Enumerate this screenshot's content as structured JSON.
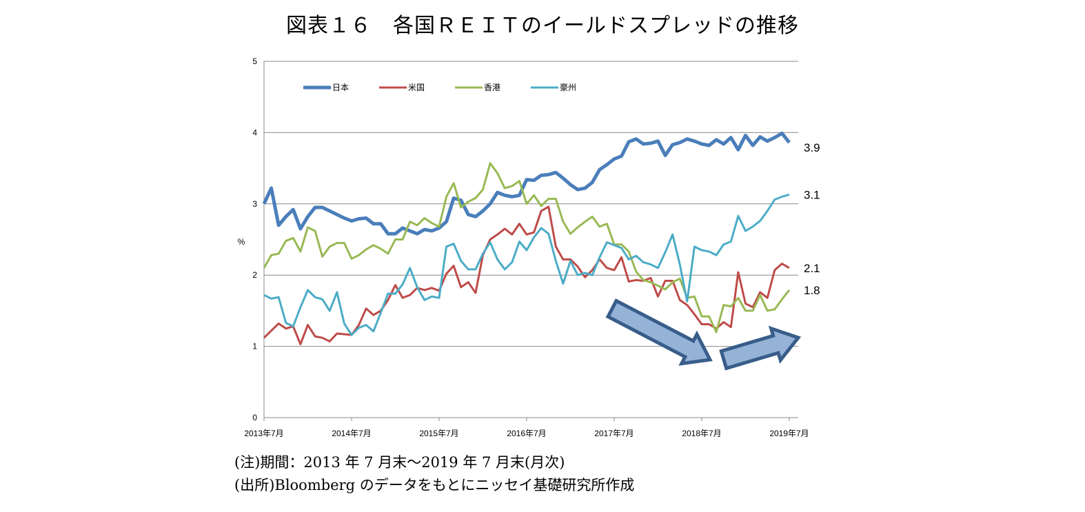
{
  "chart_data": {
    "type": "line",
    "title": "図表１６　各国ＲＥＩＴのイールドスプレッドの推移",
    "ylabel": "%",
    "xlabel": "",
    "ylim": [
      0,
      5
    ],
    "yticks": [
      0,
      1,
      2,
      3,
      4,
      5
    ],
    "start": "2013-07",
    "frequency": "monthly",
    "xticks": [
      "2013年7月",
      "2014年7月",
      "2015年7月",
      "2016年7月",
      "2017年7月",
      "2018年7月",
      "2019年7月"
    ],
    "grid": "horizontal",
    "legend_position": "top-left",
    "series": [
      {
        "name": "日本",
        "color": "#4a7ebb",
        "end_label": "3.9",
        "values": [
          3.0,
          3.22,
          2.7,
          2.82,
          2.92,
          2.65,
          2.82,
          2.95,
          2.95,
          2.9,
          2.85,
          2.8,
          2.76,
          2.79,
          2.8,
          2.72,
          2.72,
          2.58,
          2.58,
          2.66,
          2.62,
          2.58,
          2.64,
          2.62,
          2.66,
          2.75,
          3.08,
          3.05,
          2.85,
          2.82,
          2.9,
          3.0,
          3.16,
          3.12,
          3.1,
          3.12,
          3.34,
          3.33,
          3.4,
          3.41,
          3.44,
          3.36,
          3.27,
          3.2,
          3.22,
          3.3,
          3.48,
          3.55,
          3.63,
          3.67,
          3.87,
          3.91,
          3.84,
          3.85,
          3.88,
          3.68,
          3.83,
          3.86,
          3.91,
          3.88,
          3.84,
          3.82,
          3.9,
          3.84,
          3.93,
          3.76,
          3.96,
          3.82,
          3.94,
          3.88,
          3.93,
          3.99,
          3.86
        ]
      },
      {
        "name": "米国",
        "color": "#be4b48",
        "end_label": "2.1",
        "values": [
          1.12,
          1.22,
          1.32,
          1.25,
          1.28,
          1.03,
          1.3,
          1.14,
          1.12,
          1.07,
          1.18,
          1.17,
          1.16,
          1.3,
          1.53,
          1.44,
          1.5,
          1.65,
          1.86,
          1.68,
          1.72,
          1.82,
          1.79,
          1.82,
          1.78,
          2.02,
          2.13,
          1.83,
          1.9,
          1.75,
          2.28,
          2.5,
          2.57,
          2.65,
          2.57,
          2.72,
          2.57,
          2.6,
          2.9,
          2.96,
          2.4,
          2.22,
          2.22,
          2.12,
          1.97,
          2.07,
          2.22,
          2.1,
          2.07,
          2.25,
          1.91,
          1.93,
          1.92,
          1.96,
          1.7,
          1.92,
          1.92,
          1.65,
          1.58,
          1.45,
          1.31,
          1.31,
          1.25,
          1.34,
          1.27,
          2.04,
          1.6,
          1.55,
          1.76,
          1.68,
          2.07,
          2.16,
          2.1
        ]
      },
      {
        "name": "香港",
        "color": "#98b954",
        "end_label": "1.8",
        "values": [
          2.1,
          2.28,
          2.3,
          2.48,
          2.52,
          2.33,
          2.67,
          2.62,
          2.26,
          2.4,
          2.45,
          2.45,
          2.23,
          2.28,
          2.36,
          2.42,
          2.37,
          2.3,
          2.5,
          2.5,
          2.75,
          2.7,
          2.8,
          2.73,
          2.68,
          3.1,
          3.29,
          2.95,
          3.03,
          3.08,
          3.2,
          3.57,
          3.43,
          3.22,
          3.25,
          3.32,
          3.0,
          3.12,
          2.97,
          3.07,
          3.07,
          2.75,
          2.58,
          2.67,
          2.75,
          2.82,
          2.68,
          2.72,
          2.43,
          2.43,
          2.33,
          2.05,
          1.93,
          1.9,
          1.85,
          1.8,
          1.9,
          1.95,
          1.68,
          1.7,
          1.42,
          1.42,
          1.2,
          1.58,
          1.56,
          1.68,
          1.5,
          1.5,
          1.72,
          1.5,
          1.52,
          1.66,
          1.79
        ]
      },
      {
        "name": "豪州",
        "color": "#4bacc6",
        "end_label": "3.1",
        "values": [
          1.72,
          1.67,
          1.69,
          1.33,
          1.28,
          1.55,
          1.79,
          1.69,
          1.66,
          1.5,
          1.76,
          1.32,
          1.16,
          1.26,
          1.3,
          1.21,
          1.47,
          1.74,
          1.74,
          1.87,
          2.1,
          1.83,
          1.65,
          1.7,
          1.68,
          2.4,
          2.44,
          2.2,
          2.08,
          2.08,
          2.3,
          2.46,
          2.22,
          2.08,
          2.18,
          2.47,
          2.35,
          2.53,
          2.66,
          2.58,
          2.2,
          1.88,
          2.2,
          2.0,
          2.03,
          2.0,
          2.25,
          2.46,
          2.42,
          2.38,
          2.22,
          2.27,
          2.18,
          2.15,
          2.1,
          2.32,
          2.57,
          2.15,
          1.63,
          2.4,
          2.35,
          2.33,
          2.28,
          2.43,
          2.47,
          2.83,
          2.62,
          2.68,
          2.76,
          2.9,
          3.06,
          3.1,
          3.13
        ]
      }
    ],
    "annotations": [
      "down-arrow",
      "up-arrow"
    ],
    "arrow_color": "#95b3d7"
  },
  "notes": [
    "(注)期間：2013 年 7 月末～2019 年 7 月末(月次)",
    "(出所)Bloomberg のデータをもとにニッセイ基礎研究所作成"
  ]
}
